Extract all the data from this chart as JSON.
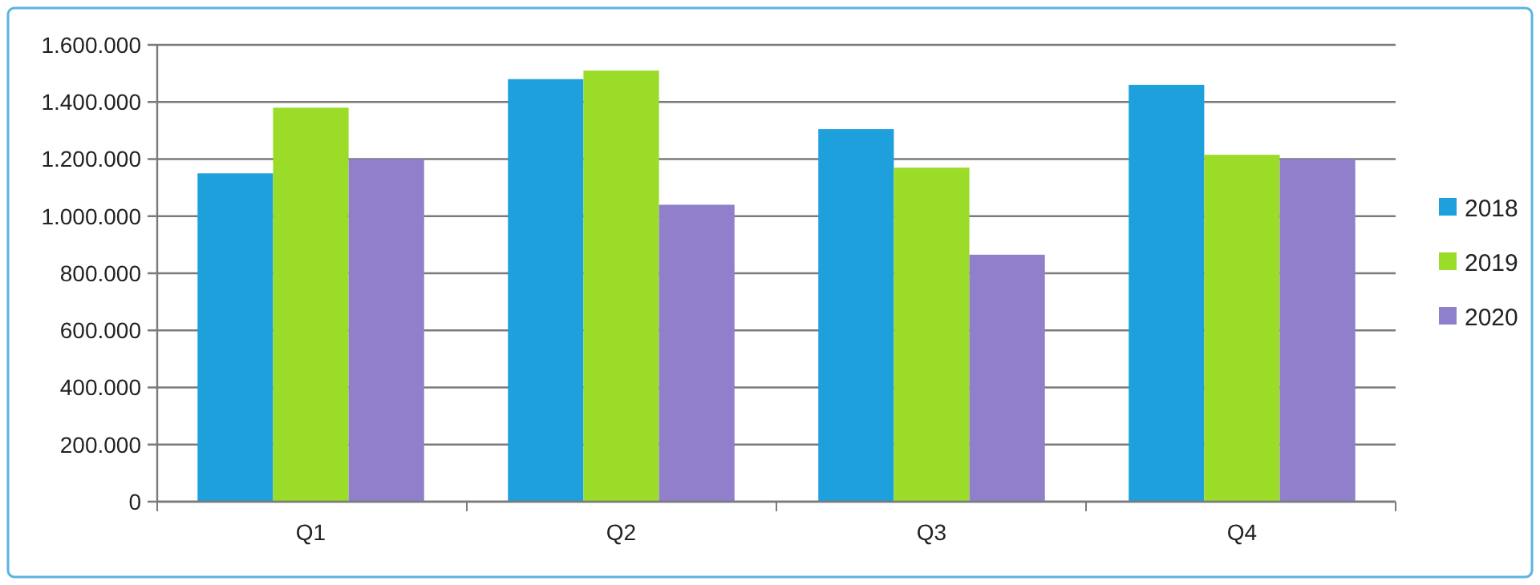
{
  "chart_data": {
    "type": "bar",
    "categories": [
      "Q1",
      "Q2",
      "Q3",
      "Q4"
    ],
    "series": [
      {
        "name": "2018",
        "color": "#1ea0dc",
        "values": [
          1150000,
          1480000,
          1305000,
          1460000
        ]
      },
      {
        "name": "2019",
        "color": "#9adc28",
        "values": [
          1380000,
          1510000,
          1170000,
          1215000
        ]
      },
      {
        "name": "2020",
        "color": "#9080cc",
        "values": [
          1200000,
          1040000,
          865000,
          1200000
        ]
      }
    ],
    "ylim": [
      0,
      1600000
    ],
    "yticks": [
      0,
      {
        "value": 200000,
        "label": "200.000"
      },
      {
        "value": 400000,
        "label": "400.000"
      },
      {
        "value": 600000,
        "label": "600.000"
      },
      {
        "value": 800000,
        "label": "800.000"
      },
      {
        "value": 1000000,
        "label": "1.000.000"
      },
      {
        "value": 1200000,
        "label": "1.200.000"
      },
      {
        "value": 1400000,
        "label": "1.400.000"
      },
      {
        "value": 1600000,
        "label": "1.600.000"
      }
    ],
    "grid": "y",
    "legend": "right"
  }
}
